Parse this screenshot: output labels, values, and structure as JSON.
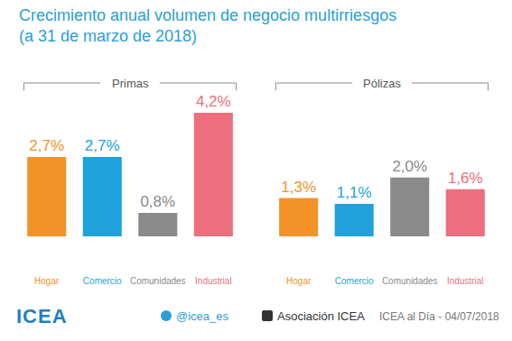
{
  "title": "Crecimiento anual volumen de negocio multirriesgos",
  "subtitle": "(a 31 de marzo de 2018)",
  "chart_data": [
    {
      "type": "bar",
      "title": "Primas",
      "categories": [
        "Hogar",
        "Comercio",
        "Comunidades",
        "Industrial"
      ],
      "values": [
        2.7,
        2.7,
        0.8,
        4.2
      ],
      "value_labels": [
        "2,7%",
        "2,7%",
        "0,8%",
        "4,2%"
      ],
      "colors": [
        "#f39226",
        "#1fa1db",
        "#8a8a8a",
        "#ec6f7d"
      ],
      "ylim": [
        0,
        4.2
      ],
      "data_labels": true,
      "grid": false,
      "tick_labels": "x"
    },
    {
      "type": "bar",
      "title": "Pólizas",
      "categories": [
        "Hogar",
        "Comercio",
        "Comunidades",
        "Industrial"
      ],
      "values": [
        1.3,
        1.1,
        2.0,
        1.6
      ],
      "value_labels": [
        "1,3%",
        "1,1%",
        "2,0%",
        "1,6%"
      ],
      "colors": [
        "#f39226",
        "#1fa1db",
        "#8a8a8a",
        "#ec6f7d"
      ],
      "ylim": [
        0,
        4.2
      ],
      "data_labels": true,
      "grid": false,
      "tick_labels": "x"
    }
  ],
  "footer": {
    "logo": "ICEA",
    "twitter": "@icea_es",
    "linkedin": "Asociación ICEA",
    "source": "ICEA al Día - 04/07/2018"
  }
}
